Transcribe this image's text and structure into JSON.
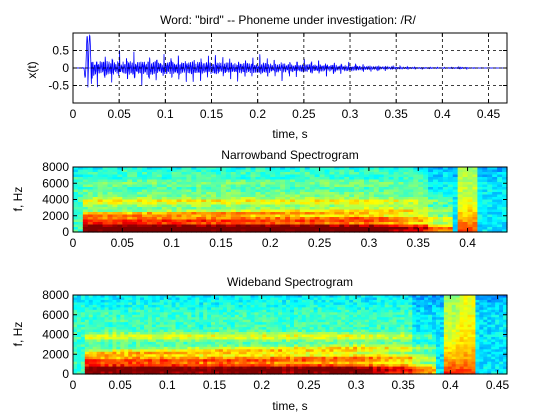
{
  "chart_data": [
    {
      "type": "line",
      "title": "Word: \"bird\" --  Phoneme under investigation: /R/",
      "xlabel": "time, s",
      "ylabel": "x(t)",
      "xlim": [
        0,
        0.47
      ],
      "ylim": [
        -1,
        1
      ],
      "xticks": [
        "0",
        "0.05",
        "0.1",
        "0.15",
        "0.2",
        "0.25",
        "0.3",
        "0.35",
        "0.4",
        "0.45"
      ],
      "yticks": [
        "-0.5",
        "0",
        "0.5"
      ],
      "grid": true,
      "series": [
        {
          "color": "#0000ff",
          "envelope": {
            "t": [
              0.0,
              0.012,
              0.015,
              0.02,
              0.025,
              0.03,
              0.05,
              0.1,
              0.15,
              0.2,
              0.25,
              0.28,
              0.3,
              0.32,
              0.34,
              0.36,
              0.38,
              0.4,
              0.41,
              0.42,
              0.43,
              0.47
            ],
            "amplitude": [
              0.0,
              0.02,
              0.9,
              0.95,
              0.55,
              0.65,
              0.6,
              0.55,
              0.5,
              0.45,
              0.35,
              0.28,
              0.22,
              0.15,
              0.1,
              0.06,
              0.04,
              0.03,
              0.03,
              0.06,
              0.02,
              0.0
            ]
          }
        }
      ]
    },
    {
      "type": "heatmap",
      "title": "Narrowband Spectrogram",
      "xlabel": "",
      "ylabel": "f, Hz",
      "xlim": [
        0,
        0.44
      ],
      "ylim": [
        0,
        8000
      ],
      "xticks": [
        "0",
        "0.05",
        "0.1",
        "0.15",
        "0.2",
        "0.25",
        "0.3",
        "0.35",
        "0.4"
      ],
      "yticks": [
        "0",
        "2000",
        "4000",
        "6000",
        "8000"
      ],
      "colormap": "jet"
    },
    {
      "type": "heatmap",
      "title": "Wideband Spectrogram",
      "xlabel": "time, s",
      "ylabel": "f, Hz",
      "xlim": [
        0,
        0.46
      ],
      "ylim": [
        0,
        8000
      ],
      "xticks": [
        "0",
        "0.05",
        "0.1",
        "0.15",
        "0.2",
        "0.25",
        "0.3",
        "0.35",
        "0.4",
        "0.45"
      ],
      "yticks": [
        "0",
        "2000",
        "4000",
        "6000",
        "8000"
      ],
      "colormap": "jet"
    }
  ]
}
